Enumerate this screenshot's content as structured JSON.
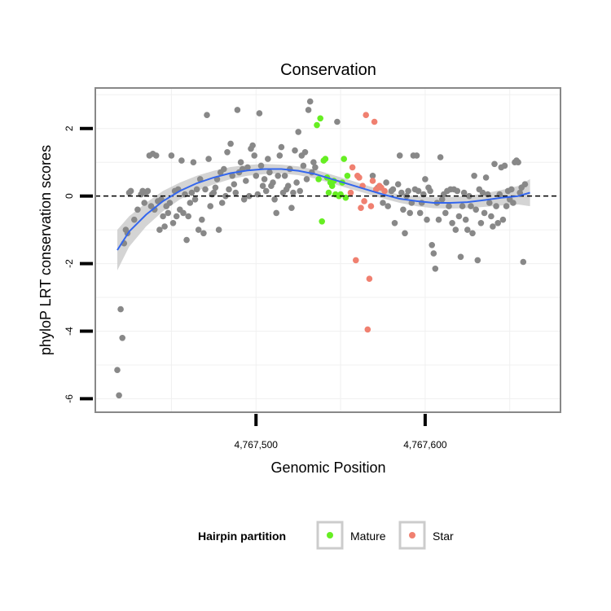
{
  "chart_data": {
    "type": "scatter",
    "title": "Conservation",
    "xlabel": "Genomic Position",
    "ylabel": "phyloP LRT conservation scores",
    "xlim": [
      4767405,
      4767680
    ],
    "ylim": [
      -6.4,
      3.2
    ],
    "x_ticks": [
      {
        "value": 4767500,
        "label": "4,767,500"
      },
      {
        "value": 4767600,
        "label": "4,767,600"
      }
    ],
    "y_ticks": [
      {
        "value": 2,
        "label": "2"
      },
      {
        "value": 0,
        "label": "0"
      },
      {
        "value": -2,
        "label": "-2"
      },
      {
        "value": -4,
        "label": "-4"
      },
      {
        "value": -6,
        "label": "-6"
      }
    ],
    "grid": true,
    "reference_line": {
      "y": 0,
      "style": "dashed",
      "color": "#000000"
    },
    "legend": {
      "title": "Hairpin partition",
      "placement": "bottom",
      "entries": [
        {
          "name": "Mature",
          "color": "#66ee22"
        },
        {
          "name": "Star",
          "color": "#f08070"
        }
      ]
    },
    "colors": {
      "background": "#888888",
      "Mature": "#66ee22",
      "Star": "#f08070",
      "smooth": "#3366ee",
      "ribbon": "#cccccc"
    },
    "series": [
      {
        "name": "background",
        "color": "#888888",
        "points": [
          [
            4767418,
            -5.15
          ],
          [
            4767419,
            -5.9
          ],
          [
            4767420,
            -3.35
          ],
          [
            4767421,
            -4.2
          ],
          [
            4767422,
            -1.4
          ],
          [
            4767423,
            -1.0
          ],
          [
            4767424,
            -1.1
          ],
          [
            4767425,
            0.1
          ],
          [
            4767426,
            0.15
          ],
          [
            4767428,
            -0.7
          ],
          [
            4767430,
            -0.4
          ],
          [
            4767432,
            0.05
          ],
          [
            4767433,
            0.15
          ],
          [
            4767434,
            -0.2
          ],
          [
            4767435,
            0.1
          ],
          [
            4767436,
            0.15
          ],
          [
            4767437,
            1.2
          ],
          [
            4767438,
            -0.3
          ],
          [
            4767439,
            1.25
          ],
          [
            4767440,
            -0.4
          ],
          [
            4767441,
            1.2
          ],
          [
            4767442,
            -0.15
          ],
          [
            4767443,
            -1.0
          ],
          [
            4767444,
            -0.1
          ],
          [
            4767445,
            -0.6
          ],
          [
            4767446,
            -0.9
          ],
          [
            4767447,
            -0.3
          ],
          [
            4767448,
            -0.5
          ],
          [
            4767449,
            -0.2
          ],
          [
            4767450,
            1.2
          ],
          [
            4767451,
            -0.8
          ],
          [
            4767452,
            0.15
          ],
          [
            4767453,
            -0.6
          ],
          [
            4767454,
            0.2
          ],
          [
            4767455,
            -0.4
          ],
          [
            4767456,
            1.05
          ],
          [
            4767457,
            -0.5
          ],
          [
            4767458,
            0.05
          ],
          [
            4767459,
            -1.3
          ],
          [
            4767460,
            -0.6
          ],
          [
            4767461,
            -0.2
          ],
          [
            4767462,
            0.1
          ],
          [
            4767463,
            1.0
          ],
          [
            4767464,
            -0.1
          ],
          [
            4767465,
            0.2
          ],
          [
            4767466,
            -1.0
          ],
          [
            4767467,
            0.5
          ],
          [
            4767468,
            -0.7
          ],
          [
            4767469,
            -1.1
          ],
          [
            4767470,
            0.2
          ],
          [
            4767471,
            2.4
          ],
          [
            4767472,
            1.1
          ],
          [
            4767473,
            -0.3
          ],
          [
            4767474,
            0.05
          ],
          [
            4767475,
            0.1
          ],
          [
            4767476,
            0.25
          ],
          [
            4767477,
            0.5
          ],
          [
            4767478,
            -1.0
          ],
          [
            4767479,
            0.7
          ],
          [
            4767480,
            -0.2
          ],
          [
            4767481,
            0.8
          ],
          [
            4767482,
            0.0
          ],
          [
            4767483,
            1.3
          ],
          [
            4767484,
            0.2
          ],
          [
            4767485,
            1.55
          ],
          [
            4767486,
            0.6
          ],
          [
            4767487,
            0.35
          ],
          [
            4767488,
            0.1
          ],
          [
            4767489,
            2.55
          ],
          [
            4767490,
            0.7
          ],
          [
            4767491,
            1.0
          ],
          [
            4767492,
            0.8
          ],
          [
            4767493,
            -0.1
          ],
          [
            4767494,
            0.45
          ],
          [
            4767495,
            0.85
          ],
          [
            4767496,
            0.0
          ],
          [
            4767497,
            1.4
          ],
          [
            4767498,
            1.5
          ],
          [
            4767499,
            1.2
          ],
          [
            4767500,
            0.6
          ],
          [
            4767501,
            0.05
          ],
          [
            4767502,
            2.45
          ],
          [
            4767503,
            0.9
          ],
          [
            4767504,
            0.3
          ],
          [
            4767505,
            0.5
          ],
          [
            4767506,
            0.15
          ],
          [
            4767507,
            1.1
          ],
          [
            4767508,
            0.7
          ],
          [
            4767509,
            0.3
          ],
          [
            4767510,
            0.4
          ],
          [
            4767511,
            -0.1
          ],
          [
            4767512,
            -0.5
          ],
          [
            4767513,
            0.6
          ],
          [
            4767514,
            1.2
          ],
          [
            4767515,
            1.45
          ],
          [
            4767516,
            0.1
          ],
          [
            4767517,
            0.6
          ],
          [
            4767518,
            0.2
          ],
          [
            4767519,
            0.3
          ],
          [
            4767520,
            0.8
          ],
          [
            4767521,
            -0.35
          ],
          [
            4767522,
            0.1
          ],
          [
            4767523,
            1.35
          ],
          [
            4767524,
            0.4
          ],
          [
            4767525,
            1.9
          ],
          [
            4767526,
            0.15
          ],
          [
            4767527,
            1.2
          ],
          [
            4767528,
            0.9
          ],
          [
            4767529,
            1.3
          ],
          [
            4767530,
            0.5
          ],
          [
            4767531,
            2.55
          ],
          [
            4767532,
            2.8
          ],
          [
            4767533,
            0.7
          ],
          [
            4767534,
            1.0
          ],
          [
            4767535,
            0.85
          ],
          [
            4767548,
            2.2
          ],
          [
            4767569,
            0.6
          ],
          [
            4767572,
            0.25
          ],
          [
            4767575,
            -0.2
          ],
          [
            4767577,
            0.4
          ],
          [
            4767578,
            -0.3
          ],
          [
            4767580,
            0.15
          ],
          [
            4767581,
            0.2
          ],
          [
            4767582,
            -0.8
          ],
          [
            4767584,
            0.35
          ],
          [
            4767585,
            1.2
          ],
          [
            4767586,
            0.1
          ],
          [
            4767587,
            -0.4
          ],
          [
            4767588,
            -1.1
          ],
          [
            4767589,
            0.0
          ],
          [
            4767590,
            0.15
          ],
          [
            4767591,
            -0.5
          ],
          [
            4767592,
            -0.2
          ],
          [
            4767593,
            1.2
          ],
          [
            4767594,
            0.2
          ],
          [
            4767595,
            1.2
          ],
          [
            4767596,
            0.15
          ],
          [
            4767597,
            -0.5
          ],
          [
            4767598,
            -0.2
          ],
          [
            4767599,
            0.05
          ],
          [
            4767600,
            0.5
          ],
          [
            4767601,
            -0.7
          ],
          [
            4767602,
            0.25
          ],
          [
            4767603,
            0.15
          ],
          [
            4767604,
            -1.45
          ],
          [
            4767605,
            -1.7
          ],
          [
            4767606,
            -2.15
          ],
          [
            4767607,
            -0.2
          ],
          [
            4767608,
            -0.7
          ],
          [
            4767609,
            1.15
          ],
          [
            4767610,
            -0.1
          ],
          [
            4767611,
            0.05
          ],
          [
            4767612,
            -0.5
          ],
          [
            4767613,
            0.15
          ],
          [
            4767614,
            -0.3
          ],
          [
            4767615,
            0.2
          ],
          [
            4767616,
            -0.8
          ],
          [
            4767617,
            0.2
          ],
          [
            4767618,
            -1.0
          ],
          [
            4767619,
            0.15
          ],
          [
            4767620,
            -0.6
          ],
          [
            4767621,
            -1.8
          ],
          [
            4767622,
            -0.3
          ],
          [
            4767623,
            0.1
          ],
          [
            4767624,
            -0.7
          ],
          [
            4767625,
            -1.0
          ],
          [
            4767626,
            0.0
          ],
          [
            4767627,
            -0.3
          ],
          [
            4767628,
            -1.1
          ],
          [
            4767629,
            0.6
          ],
          [
            4767630,
            -0.4
          ],
          [
            4767631,
            -1.9
          ],
          [
            4767632,
            0.2
          ],
          [
            4767633,
            -0.8
          ],
          [
            4767634,
            0.1
          ],
          [
            4767635,
            -0.5
          ],
          [
            4767636,
            0.55
          ],
          [
            4767637,
            0.05
          ],
          [
            4767638,
            -0.2
          ],
          [
            4767639,
            -0.6
          ],
          [
            4767640,
            -0.9
          ],
          [
            4767641,
            0.95
          ],
          [
            4767642,
            -0.3
          ],
          [
            4767643,
            -0.8
          ],
          [
            4767644,
            0.05
          ],
          [
            4767645,
            0.85
          ],
          [
            4767646,
            -0.7
          ],
          [
            4767647,
            0.9
          ],
          [
            4767648,
            -0.3
          ],
          [
            4767649,
            0.15
          ],
          [
            4767650,
            -0.1
          ],
          [
            4767651,
            0.2
          ],
          [
            4767652,
            -0.2
          ],
          [
            4767653,
            1.0
          ],
          [
            4767654,
            1.05
          ],
          [
            4767655,
            1.0
          ],
          [
            4767656,
            0.1
          ],
          [
            4767657,
            0.25
          ],
          [
            4767658,
            -1.95
          ],
          [
            4767659,
            0.35
          ]
        ]
      },
      {
        "name": "Mature",
        "color": "#66ee22",
        "points": [
          [
            4767536,
            2.1
          ],
          [
            4767537,
            0.5
          ],
          [
            4767538,
            2.3
          ],
          [
            4767539,
            -0.75
          ],
          [
            4767540,
            1.05
          ],
          [
            4767541,
            1.1
          ],
          [
            4767542,
            0.55
          ],
          [
            4767543,
            0.1
          ],
          [
            4767544,
            0.4
          ],
          [
            4767545,
            0.3
          ],
          [
            4767546,
            0.45
          ],
          [
            4767547,
            0.05
          ],
          [
            4767549,
            0.0
          ],
          [
            4767550,
            0.05
          ],
          [
            4767551,
            0.4
          ],
          [
            4767552,
            1.1
          ],
          [
            4767553,
            -0.05
          ],
          [
            4767554,
            0.6
          ]
        ]
      },
      {
        "name": "Star",
        "color": "#f08070",
        "points": [
          [
            4767556,
            0.1
          ],
          [
            4767557,
            0.85
          ],
          [
            4767559,
            -1.9
          ],
          [
            4767560,
            0.6
          ],
          [
            4767561,
            0.55
          ],
          [
            4767562,
            -0.35
          ],
          [
            4767563,
            0.3
          ],
          [
            4767564,
            -0.15
          ],
          [
            4767565,
            2.4
          ],
          [
            4767566,
            -3.95
          ],
          [
            4767567,
            -2.45
          ],
          [
            4767568,
            -0.3
          ],
          [
            4767569,
            0.45
          ],
          [
            4767570,
            2.2
          ],
          [
            4767571,
            0.2
          ],
          [
            4767573,
            0.3
          ],
          [
            4767574,
            0.25
          ],
          [
            4767576,
            0.15
          ]
        ]
      }
    ],
    "smooth": {
      "color": "#3366ee",
      "x": [
        4767418,
        4767425,
        4767435,
        4767445,
        4767455,
        4767465,
        4767475,
        4767485,
        4767495,
        4767505,
        4767515,
        4767525,
        4767535,
        4767545,
        4767555,
        4767565,
        4767575,
        4767585,
        4767595,
        4767605,
        4767615,
        4767625,
        4767635,
        4767645,
        4767655,
        4767662
      ],
      "y": [
        -1.6,
        -1.05,
        -0.55,
        -0.15,
        0.15,
        0.38,
        0.55,
        0.68,
        0.76,
        0.8,
        0.8,
        0.75,
        0.65,
        0.5,
        0.35,
        0.2,
        0.05,
        -0.08,
        -0.15,
        -0.2,
        -0.2,
        -0.18,
        -0.12,
        -0.05,
        0.0,
        0.1
      ],
      "ci_low": [
        -2.2,
        -1.5,
        -0.9,
        -0.45,
        -0.1,
        0.15,
        0.35,
        0.5,
        0.6,
        0.65,
        0.67,
        0.62,
        0.52,
        0.37,
        0.22,
        0.08,
        -0.07,
        -0.2,
        -0.3,
        -0.36,
        -0.37,
        -0.36,
        -0.32,
        -0.28,
        -0.25,
        -0.3
      ],
      "ci_high": [
        -1.0,
        -0.6,
        -0.2,
        0.15,
        0.4,
        0.6,
        0.75,
        0.86,
        0.92,
        0.95,
        0.93,
        0.88,
        0.78,
        0.63,
        0.48,
        0.32,
        0.17,
        0.04,
        0.0,
        -0.04,
        -0.03,
        0.0,
        0.08,
        0.18,
        0.3,
        0.5
      ]
    }
  }
}
